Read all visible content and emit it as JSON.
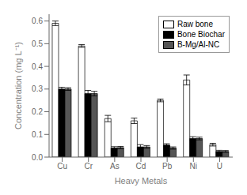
{
  "chart_data": {
    "type": "bar",
    "categories": [
      "Cu",
      "Cr",
      "As",
      "Cd",
      "Pb",
      "Ni",
      "U"
    ],
    "series": [
      {
        "name": "Raw bone",
        "color": "white",
        "values": [
          0.59,
          0.49,
          0.17,
          0.16,
          0.25,
          0.34,
          0.055
        ],
        "errors": [
          0.01,
          0.006,
          0.014,
          0.012,
          0.006,
          0.022,
          0.006
        ]
      },
      {
        "name": "Bone Biochar",
        "color": "black",
        "values": [
          0.3,
          0.28,
          0.04,
          0.045,
          0.053,
          0.082,
          0.025
        ],
        "errors": [
          0.008,
          0.014,
          0.006,
          0.01,
          0.006,
          0.008,
          0.005
        ]
      },
      {
        "name": "B-Mg/Al-NC",
        "color": "#555555",
        "values": [
          0.3,
          0.28,
          0.042,
          0.045,
          0.04,
          0.082,
          0.025
        ],
        "errors": [
          0.006,
          0.01,
          0.005,
          0.006,
          0.005,
          0.006,
          0.004
        ]
      }
    ],
    "xlabel": "Heavy Metals",
    "ylabel": "Concentration (mg L⁻¹)",
    "ylim": [
      0,
      0.63
    ],
    "yticks": [
      {
        "value": 0,
        "label": "0.0"
      },
      0.1,
      0.2,
      0.3,
      0.4,
      0.5,
      0.6
    ],
    "grid": false,
    "legend": "upper right"
  }
}
